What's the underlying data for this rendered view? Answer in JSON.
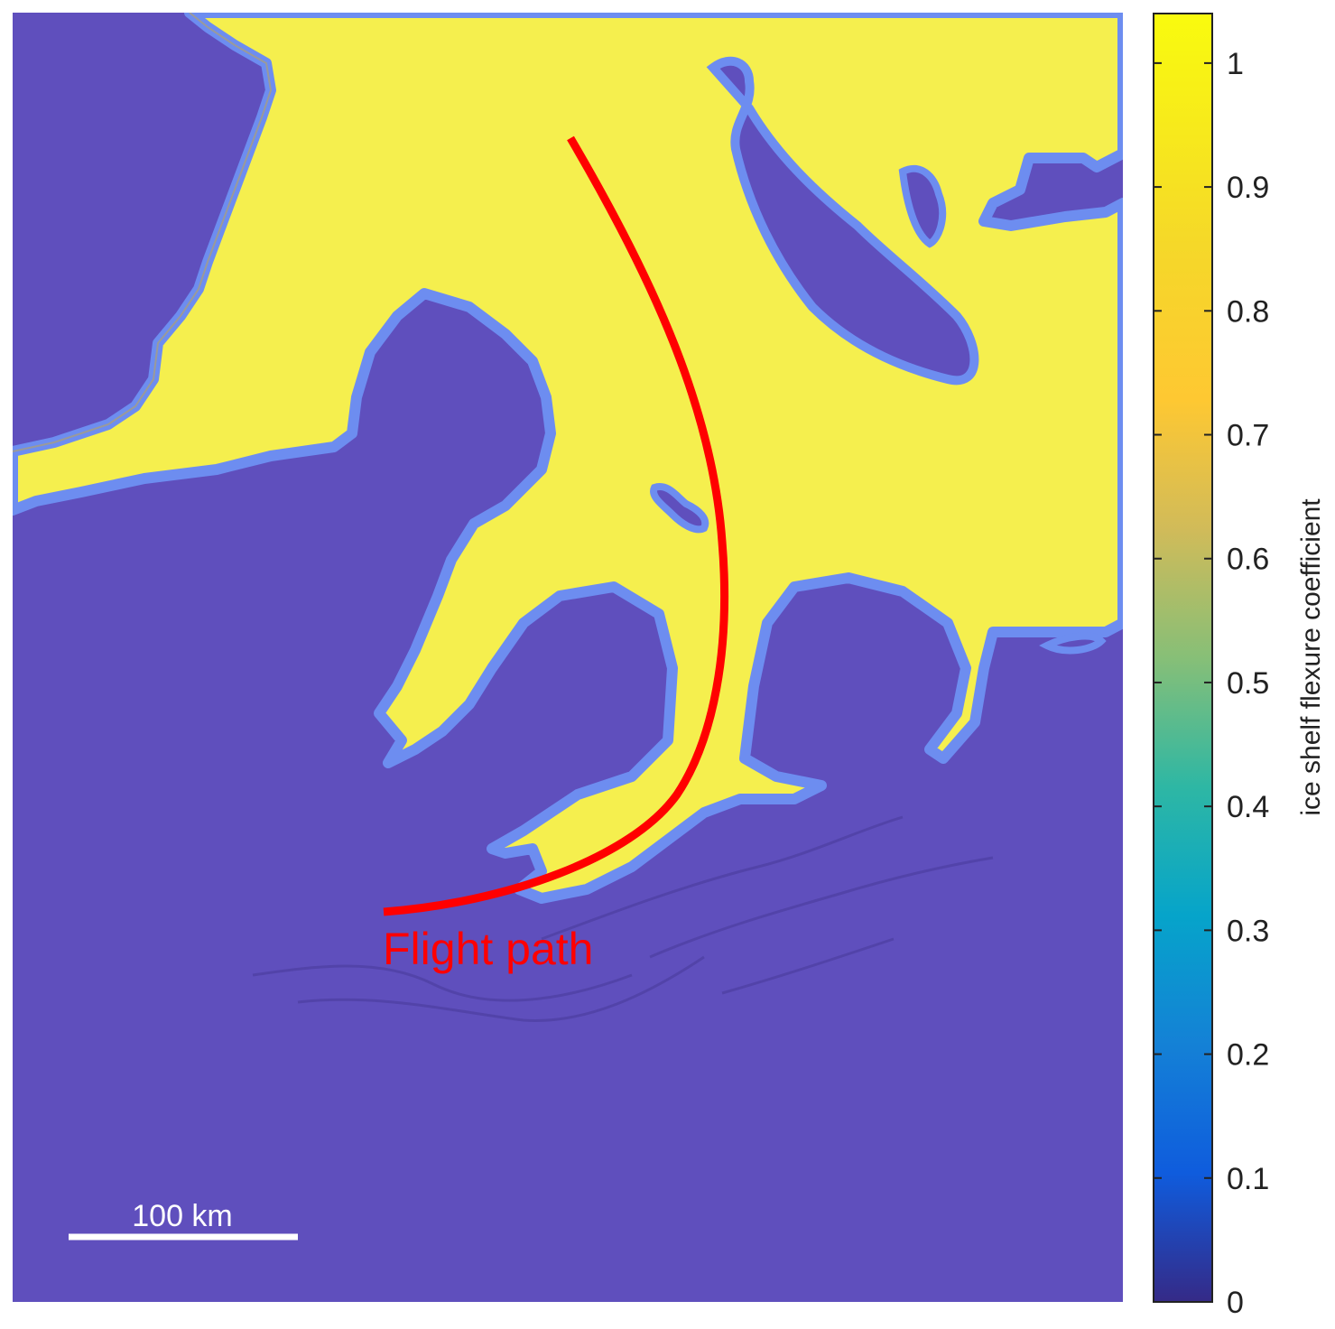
{
  "map": {
    "colors": {
      "grounded": "#5f4fbd",
      "floating": "#f5ef4e",
      "hinge": "#6d8df0",
      "grounding_line": "#9a9a9a",
      "flight_path": "#ff0000",
      "scale_bar": "#ffffff"
    },
    "flight_path_label": "Flight path",
    "scale_bar_label": "100 km"
  },
  "colorbar": {
    "label": "ice shelf flexure coefficient",
    "range": [
      0,
      1.04
    ],
    "ticks": [
      "0",
      "0.1",
      "0.2",
      "0.3",
      "0.4",
      "0.5",
      "0.6",
      "0.7",
      "0.8",
      "0.9",
      "1"
    ],
    "colormap": "parula"
  }
}
